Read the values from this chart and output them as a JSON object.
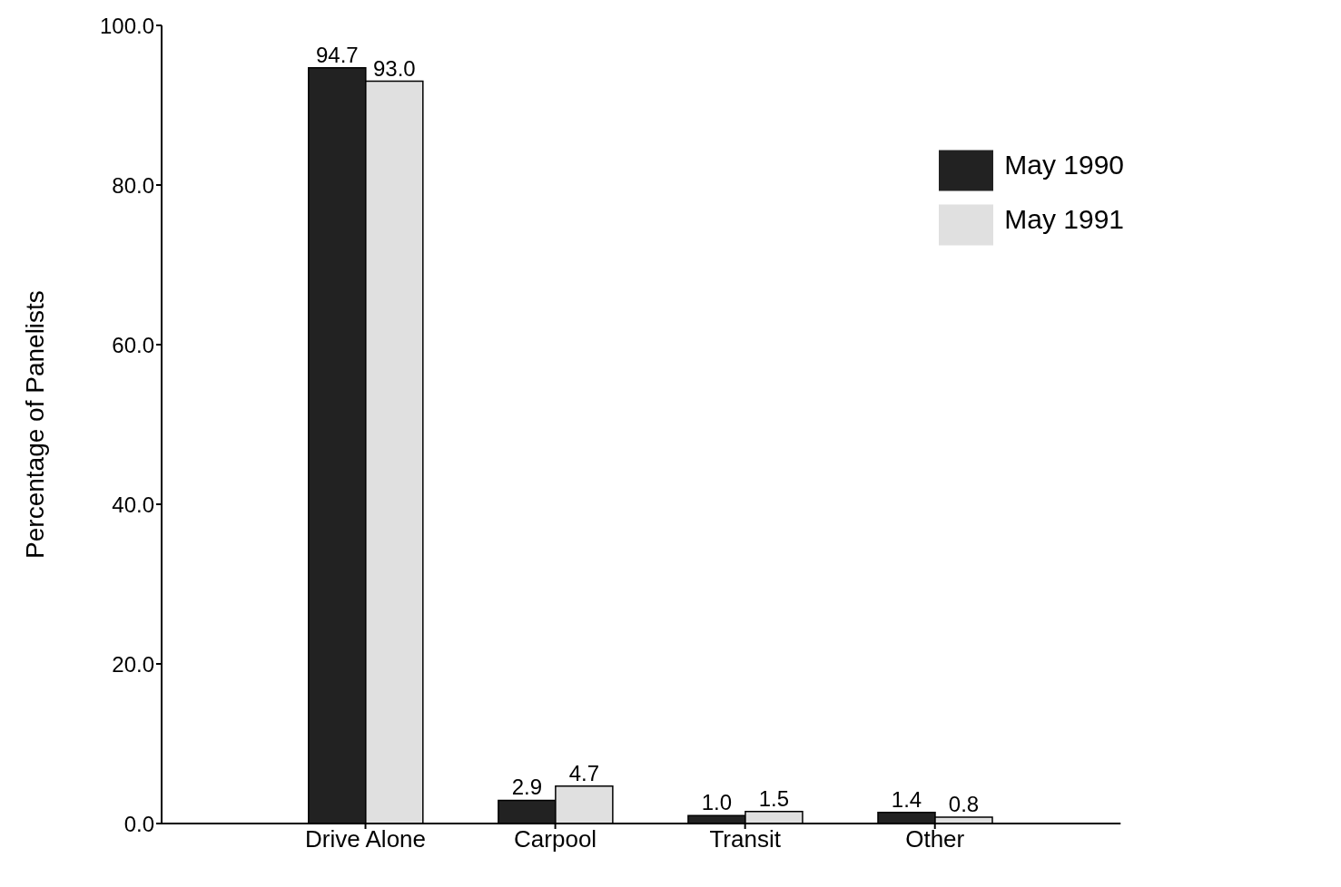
{
  "chart_data": {
    "type": "bar",
    "ylabel": "Percentage of Panelists",
    "categories": [
      "Drive Alone",
      "Carpool",
      "Transit",
      "Other"
    ],
    "series": [
      {
        "name": "May 1990",
        "color": "#222222",
        "values": [
          94.7,
          2.9,
          1.0,
          1.4
        ],
        "value_labels": [
          "94.7",
          "2.9",
          "1.0",
          "1.4"
        ]
      },
      {
        "name": "May 1991",
        "color": "#e0e0e0",
        "values": [
          93.0,
          4.7,
          1.5,
          0.8
        ],
        "value_labels": [
          "93.0",
          "4.7",
          "1.5",
          "0.8"
        ]
      }
    ],
    "ylim": [
      0,
      100
    ],
    "yticks": [
      {
        "value": 0,
        "label": "0.0"
      },
      {
        "value": 20,
        "label": "20.0"
      },
      {
        "value": 40,
        "label": "40.0"
      },
      {
        "value": 60,
        "label": "60.0"
      },
      {
        "value": 80,
        "label": "80.0"
      },
      {
        "value": 100,
        "label": "100.0"
      }
    ],
    "grid": false,
    "legend": "top right"
  }
}
